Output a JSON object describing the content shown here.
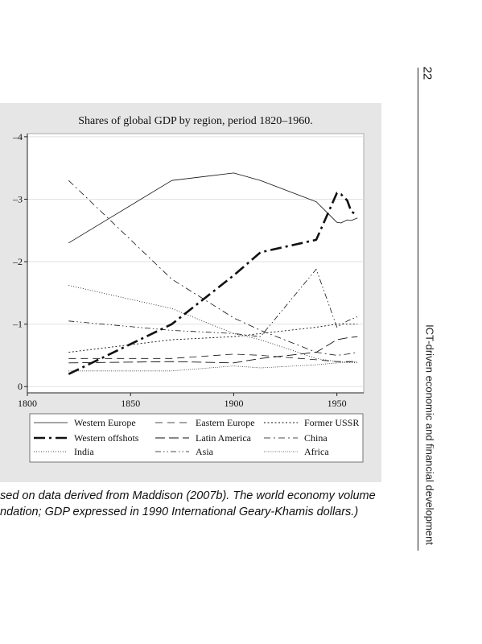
{
  "page_number": "22",
  "running_head": "ICT-driven economic and financial development",
  "caption_lines": [
    "sed on data derived from Maddison (2007b). The world economy volume",
    "ndation; GDP expressed in 1990 International Geary-Khamis dollars.)"
  ],
  "chart_data": {
    "type": "line",
    "title": "Shares of global GDP by region, period 1820–1960.",
    "xlabel": "",
    "ylabel": "",
    "xlim": [
      1800,
      1963
    ],
    "ylim": [
      -0.1,
      4.05
    ],
    "xticks": [
      1800,
      1850,
      1900,
      1950
    ],
    "yticks": [
      0,
      1,
      2,
      3,
      4
    ],
    "ytick_labels": [
      "0",
      "–1",
      "–2",
      "–3",
      "–4"
    ],
    "grid": true,
    "legend_position": "bottom",
    "series": [
      {
        "name": "Western Europe",
        "dash": "solid",
        "width": 0.8,
        "points": [
          [
            1820,
            2.3
          ],
          [
            1870,
            3.3
          ],
          [
            1900,
            3.42
          ],
          [
            1913,
            3.3
          ],
          [
            1940,
            2.96
          ],
          [
            1950,
            2.63
          ],
          [
            1952,
            2.62
          ],
          [
            1955,
            2.67
          ],
          [
            1957,
            2.66
          ],
          [
            1960,
            2.7
          ]
        ]
      },
      {
        "name": "Eastern Europe",
        "dash": "long-dash",
        "width": 0.8,
        "points": [
          [
            1820,
            0.45
          ],
          [
            1870,
            0.45
          ],
          [
            1900,
            0.52
          ],
          [
            1913,
            0.5
          ],
          [
            1940,
            0.43
          ],
          [
            1950,
            0.4
          ],
          [
            1960,
            0.4
          ]
        ]
      },
      {
        "name": "Former USSR",
        "dash": "dotted",
        "width": 0.9,
        "points": [
          [
            1820,
            0.55
          ],
          [
            1870,
            0.75
          ],
          [
            1900,
            0.8
          ],
          [
            1913,
            0.85
          ],
          [
            1940,
            0.95
          ],
          [
            1950,
            1.0
          ],
          [
            1955,
            1.0
          ],
          [
            1960,
            1.0
          ]
        ]
      },
      {
        "name": "Western offshots",
        "dash": "dash-dot-bold",
        "width": 2.6,
        "points": [
          [
            1820,
            0.2
          ],
          [
            1870,
            1.0
          ],
          [
            1900,
            1.78
          ],
          [
            1913,
            2.15
          ],
          [
            1940,
            2.35
          ],
          [
            1950,
            3.1
          ],
          [
            1952,
            3.08
          ],
          [
            1955,
            2.98
          ],
          [
            1957,
            2.8
          ],
          [
            1960,
            2.75
          ]
        ]
      },
      {
        "name": "Latin America",
        "dash": "long-dash-2",
        "width": 0.9,
        "points": [
          [
            1820,
            0.38
          ],
          [
            1870,
            0.4
          ],
          [
            1900,
            0.38
          ],
          [
            1913,
            0.45
          ],
          [
            1940,
            0.55
          ],
          [
            1950,
            0.75
          ],
          [
            1955,
            0.78
          ],
          [
            1960,
            0.8
          ]
        ]
      },
      {
        "name": "China",
        "dash": "dash-dot",
        "width": 0.8,
        "points": [
          [
            1820,
            3.3
          ],
          [
            1870,
            1.72
          ],
          [
            1900,
            1.1
          ],
          [
            1913,
            0.9
          ],
          [
            1940,
            0.55
          ],
          [
            1950,
            0.5
          ],
          [
            1955,
            0.52
          ],
          [
            1960,
            0.55
          ]
        ]
      },
      {
        "name": "India",
        "dash": "fine-dotted",
        "width": 0.8,
        "points": [
          [
            1820,
            1.62
          ],
          [
            1870,
            1.25
          ],
          [
            1900,
            0.85
          ],
          [
            1913,
            0.75
          ],
          [
            1940,
            0.45
          ],
          [
            1950,
            0.4
          ],
          [
            1960,
            0.38
          ]
        ]
      },
      {
        "name": "Asia",
        "dash": "dash-dot-dot",
        "width": 0.8,
        "points": [
          [
            1820,
            1.05
          ],
          [
            1870,
            0.9
          ],
          [
            1900,
            0.85
          ],
          [
            1913,
            0.8
          ],
          [
            1940,
            1.88
          ],
          [
            1950,
            0.95
          ],
          [
            1955,
            1.05
          ],
          [
            1960,
            1.12
          ]
        ]
      },
      {
        "name": "Africa",
        "dash": "fine-dotted-2",
        "width": 0.8,
        "points": [
          [
            1820,
            0.25
          ],
          [
            1870,
            0.25
          ],
          [
            1900,
            0.33
          ],
          [
            1913,
            0.3
          ],
          [
            1940,
            0.35
          ],
          [
            1950,
            0.38
          ],
          [
            1960,
            0.4
          ]
        ]
      }
    ]
  }
}
